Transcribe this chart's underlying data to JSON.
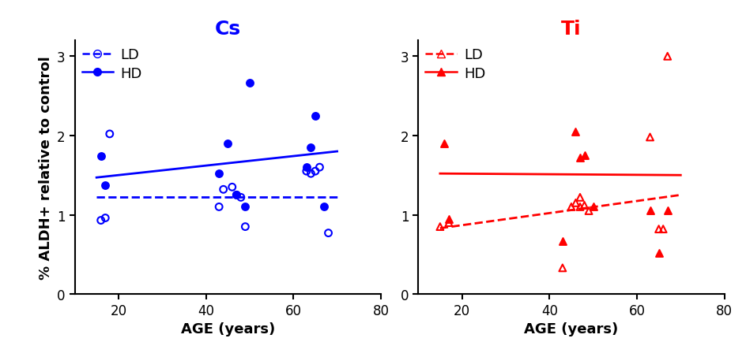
{
  "cs_ld_x": [
    16,
    17,
    18,
    43,
    44,
    46,
    47,
    48,
    49,
    63,
    64,
    65,
    66,
    68
  ],
  "cs_ld_y": [
    0.93,
    0.96,
    2.02,
    1.1,
    1.32,
    1.35,
    1.25,
    1.22,
    0.85,
    1.55,
    1.52,
    1.55,
    1.6,
    0.77
  ],
  "cs_hd_x": [
    16,
    17,
    43,
    45,
    47,
    49,
    50,
    63,
    64,
    65,
    67
  ],
  "cs_hd_y": [
    1.74,
    1.37,
    1.52,
    1.9,
    1.25,
    1.1,
    2.67,
    1.6,
    1.85,
    2.25,
    1.1
  ],
  "ti_ld_x": [
    15,
    17,
    43,
    45,
    46,
    47,
    47,
    48,
    49,
    63,
    65,
    66,
    67
  ],
  "ti_ld_y": [
    0.85,
    0.9,
    0.33,
    1.1,
    1.15,
    1.22,
    1.1,
    1.12,
    1.05,
    1.98,
    0.82,
    0.82,
    3.0
  ],
  "ti_hd_x": [
    16,
    17,
    43,
    46,
    47,
    48,
    50,
    63,
    65,
    67
  ],
  "ti_hd_y": [
    1.9,
    0.95,
    0.67,
    2.05,
    1.72,
    1.75,
    1.1,
    1.05,
    0.52,
    1.05
  ],
  "cs_ld_reg": [
    15,
    70,
    1.22,
    1.22
  ],
  "cs_hd_reg": [
    15,
    70,
    1.47,
    1.8
  ],
  "ti_ld_reg": [
    15,
    70,
    0.83,
    1.25
  ],
  "ti_hd_reg": [
    15,
    70,
    1.52,
    1.5
  ],
  "blue_color": "#0000FF",
  "red_color": "#FF0000",
  "xlim": [
    10,
    80
  ],
  "ylim": [
    0,
    3.2
  ],
  "yticks": [
    0,
    1,
    2,
    3
  ],
  "xticks": [
    20,
    40,
    60,
    80
  ],
  "xlabel": "AGE (years)",
  "ylabel": "% ALDH+ relative to control",
  "cs_title": "Cs",
  "ti_title": "Ti",
  "marker_size": 40,
  "line_width": 2.0,
  "tick_fontsize": 12,
  "label_fontsize": 13,
  "title_fontsize": 18,
  "legend_fontsize": 13
}
